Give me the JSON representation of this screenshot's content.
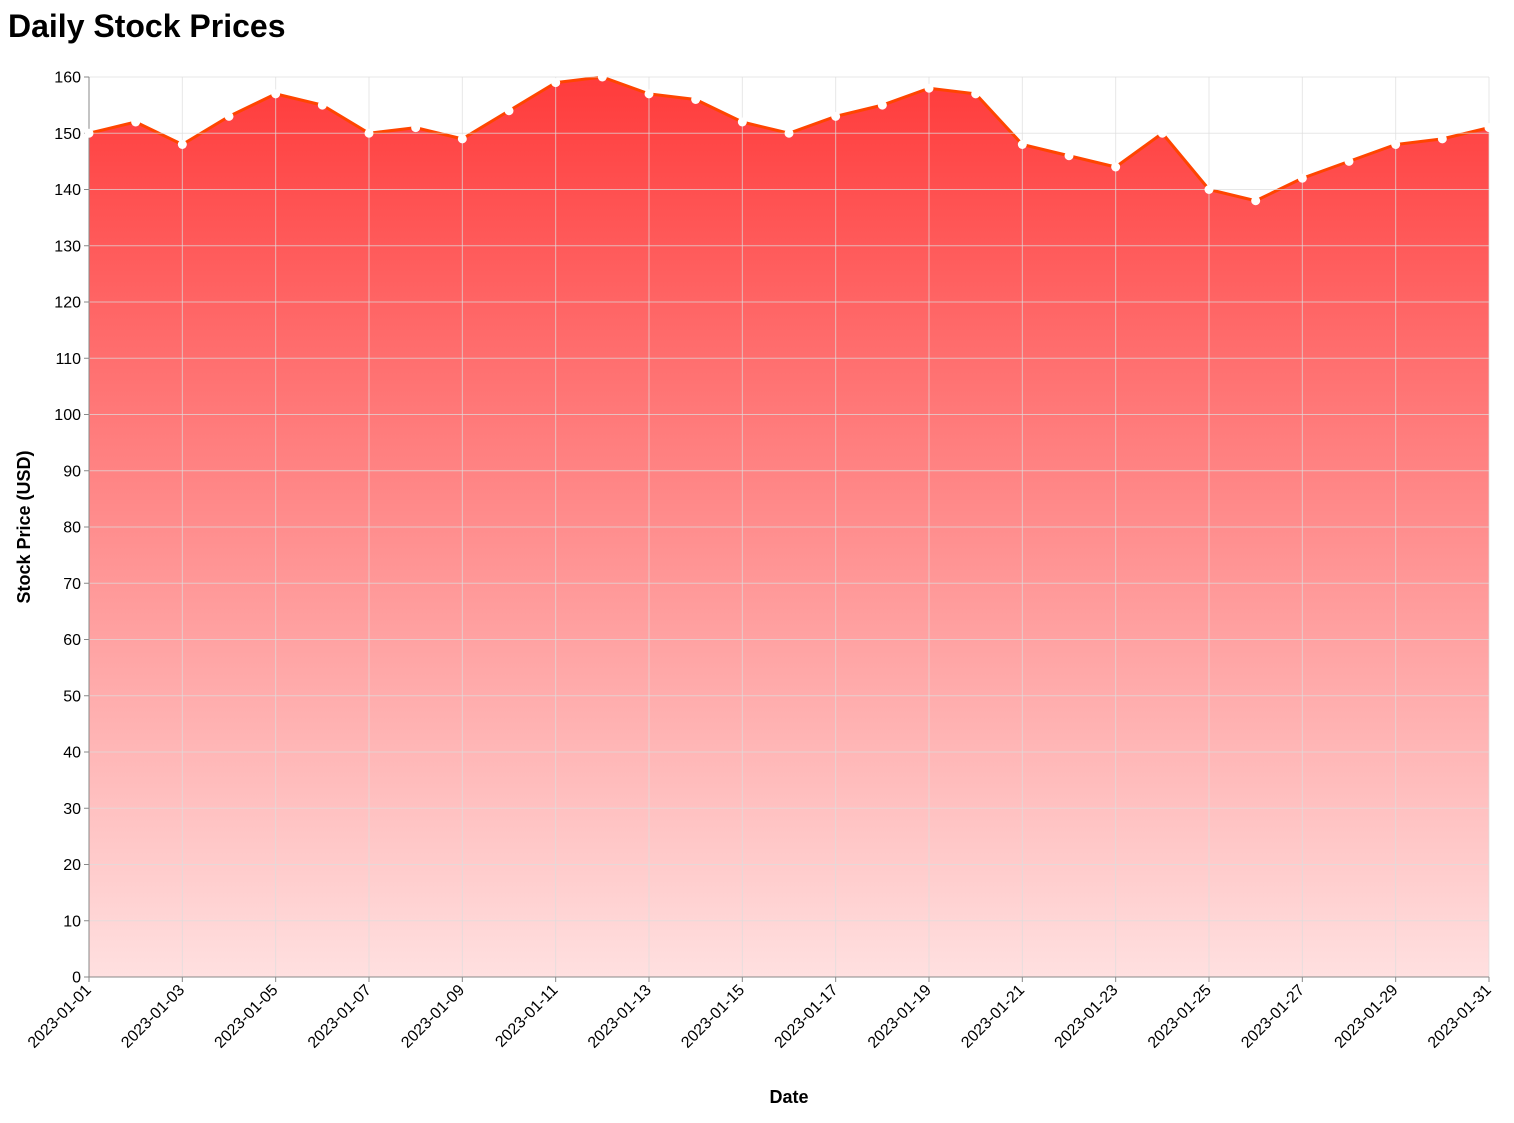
{
  "chart_data": {
    "type": "area",
    "title": "Daily Stock Prices",
    "xlabel": "Date",
    "ylabel": "Stock Price (USD)",
    "ylim": [
      0,
      160
    ],
    "yticks": [
      0,
      10,
      20,
      30,
      40,
      50,
      60,
      70,
      80,
      90,
      100,
      110,
      120,
      130,
      140,
      150,
      160
    ],
    "xticks": [
      "2023-01-01",
      "2023-01-03",
      "2023-01-05",
      "2023-01-07",
      "2023-01-09",
      "2023-01-11",
      "2023-01-13",
      "2023-01-15",
      "2023-01-17",
      "2023-01-19",
      "2023-01-21",
      "2023-01-23",
      "2023-01-25",
      "2023-01-27",
      "2023-01-29",
      "2023-01-31"
    ],
    "grid": true,
    "x": [
      "2023-01-01",
      "2023-01-02",
      "2023-01-03",
      "2023-01-04",
      "2023-01-05",
      "2023-01-06",
      "2023-01-07",
      "2023-01-08",
      "2023-01-09",
      "2023-01-10",
      "2023-01-11",
      "2023-01-12",
      "2023-01-13",
      "2023-01-14",
      "2023-01-15",
      "2023-01-16",
      "2023-01-17",
      "2023-01-18",
      "2023-01-19",
      "2023-01-20",
      "2023-01-21",
      "2023-01-22",
      "2023-01-23",
      "2023-01-24",
      "2023-01-25",
      "2023-01-26",
      "2023-01-27",
      "2023-01-28",
      "2023-01-29",
      "2023-01-30",
      "2023-01-31"
    ],
    "values": [
      150,
      152,
      148,
      153,
      157,
      155,
      150,
      151,
      149,
      154,
      159,
      160,
      157,
      156,
      152,
      150,
      153,
      155,
      158,
      157,
      148,
      146,
      144,
      150,
      140,
      138,
      142,
      145,
      148,
      149,
      151
    ],
    "colors": {
      "line": "#ff4500",
      "fill_top": "#ff3b3b",
      "fill_bottom": "#ffe0e0",
      "point_fill": "#ffffff"
    }
  }
}
